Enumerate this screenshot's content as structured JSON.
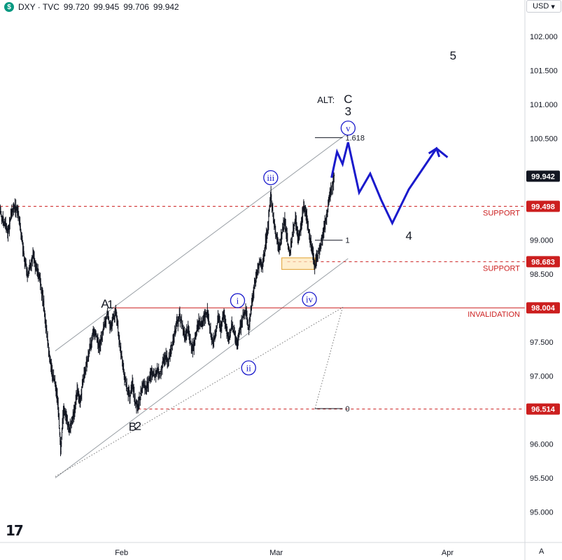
{
  "header": {
    "symbol_badge": "$",
    "symbol": "DXY · TVC",
    "open": "99.720",
    "high": "99.945",
    "low": "99.706",
    "close": "99.942"
  },
  "currency_button": {
    "label": "USD",
    "chevron": "▾"
  },
  "logo_text": "17",
  "auto_label": "A",
  "colors": {
    "candle": "#131722",
    "projection": "#1a1acc",
    "support": "#cc1f1f",
    "channel": "#9aa0a6",
    "axis_text": "#131722",
    "current_price_bg": "#131722",
    "level_bg": "#cc1f1f",
    "box_fill": "#fde7b8",
    "box_stroke": "#e0a030"
  },
  "chart_data": {
    "type": "candlestick",
    "y_axis": {
      "ticks": [
        95.0,
        95.5,
        96.0,
        96.5,
        97.0,
        97.5,
        98.0,
        98.5,
        99.0,
        99.5,
        100.0,
        100.5,
        101.0,
        101.5,
        102.0
      ],
      "tick_labels": [
        "95.000",
        "95.500",
        "96.000",
        "96.500",
        "97.000",
        "97.500",
        "98.000",
        "98.500",
        "99.000",
        "99.500",
        "",
        "100.500",
        "101.000",
        "101.500",
        "102.000"
      ],
      "range": [
        94.55,
        102.35
      ]
    },
    "x_axis": {
      "start": "2025-01-10",
      "end": "2025-04-15",
      "ticks": [
        {
          "date": "2025-02-01",
          "label": "Feb"
        },
        {
          "date": "2025-03-01",
          "label": "Mar"
        },
        {
          "date": "2025-04-01",
          "label": "Apr"
        }
      ]
    },
    "price_path": [
      [
        "2025-01-10 00:00",
        99.45
      ],
      [
        "2025-01-10 12:00",
        99.3
      ],
      [
        "2025-01-11 00:00",
        99.2
      ],
      [
        "2025-01-11 12:00",
        99.1
      ],
      [
        "2025-01-12 00:00",
        99.35
      ],
      [
        "2025-01-12 12:00",
        99.5
      ],
      [
        "2025-01-13 00:00",
        99.45
      ],
      [
        "2025-01-13 12:00",
        99.3
      ],
      [
        "2025-01-14 00:00",
        99.0
      ],
      [
        "2025-01-14 12:00",
        98.7
      ],
      [
        "2025-01-15 00:00",
        98.5
      ],
      [
        "2025-01-15 12:00",
        98.6
      ],
      [
        "2025-01-16 00:00",
        98.8
      ],
      [
        "2025-01-16 12:00",
        98.6
      ],
      [
        "2025-01-17 00:00",
        98.5
      ],
      [
        "2025-01-17 12:00",
        98.3
      ],
      [
        "2025-01-18 00:00",
        98.0
      ],
      [
        "2025-01-18 12:00",
        97.6
      ],
      [
        "2025-01-19 00:00",
        97.3
      ],
      [
        "2025-01-19 12:00",
        97.0
      ],
      [
        "2025-01-20 00:00",
        96.9
      ],
      [
        "2025-01-20 12:00",
        96.6
      ],
      [
        "2025-01-21 00:00",
        95.9
      ],
      [
        "2025-01-21 12:00",
        96.5
      ],
      [
        "2025-01-22 00:00",
        96.4
      ],
      [
        "2025-01-22 12:00",
        96.2
      ],
      [
        "2025-01-23 00:00",
        96.35
      ],
      [
        "2025-01-23 12:00",
        96.5
      ],
      [
        "2025-01-24 00:00",
        96.8
      ],
      [
        "2025-01-24 12:00",
        96.6
      ],
      [
        "2025-01-25 00:00",
        96.9
      ],
      [
        "2025-01-25 12:00",
        97.1
      ],
      [
        "2025-01-26 00:00",
        97.3
      ],
      [
        "2025-01-26 12:00",
        97.5
      ],
      [
        "2025-01-27 00:00",
        97.7
      ],
      [
        "2025-01-27 12:00",
        97.6
      ],
      [
        "2025-01-28 00:00",
        97.4
      ],
      [
        "2025-01-28 12:00",
        97.6
      ],
      [
        "2025-01-29 00:00",
        97.8
      ],
      [
        "2025-01-29 12:00",
        97.9
      ],
      [
        "2025-01-30 00:00",
        97.7
      ],
      [
        "2025-01-30 12:00",
        97.85
      ],
      [
        "2025-01-31 00:00",
        97.95
      ],
      [
        "2025-01-31 12:00",
        97.6
      ],
      [
        "2025-02-01 00:00",
        97.3
      ],
      [
        "2025-02-01 12:00",
        97.0
      ],
      [
        "2025-02-02 00:00",
        96.8
      ],
      [
        "2025-02-02 12:00",
        96.7
      ],
      [
        "2025-02-03 00:00",
        96.9
      ],
      [
        "2025-02-03 12:00",
        96.6
      ],
      [
        "2025-02-04 00:00",
        96.55
      ],
      [
        "2025-02-04 12:00",
        96.75
      ],
      [
        "2025-02-05 00:00",
        96.9
      ],
      [
        "2025-02-05 12:00",
        96.8
      ],
      [
        "2025-02-06 00:00",
        96.95
      ],
      [
        "2025-02-06 12:00",
        97.05
      ],
      [
        "2025-02-07 00:00",
        97.0
      ],
      [
        "2025-02-07 12:00",
        97.1
      ],
      [
        "2025-02-08 00:00",
        97.05
      ],
      [
        "2025-02-08 12:00",
        97.2
      ],
      [
        "2025-02-09 00:00",
        97.3
      ],
      [
        "2025-02-09 12:00",
        97.2
      ],
      [
        "2025-02-10 00:00",
        97.4
      ],
      [
        "2025-02-10 12:00",
        97.6
      ],
      [
        "2025-02-11 00:00",
        97.75
      ],
      [
        "2025-02-11 12:00",
        97.9
      ],
      [
        "2025-02-12 00:00",
        97.75
      ],
      [
        "2025-02-12 12:00",
        97.55
      ],
      [
        "2025-02-13 00:00",
        97.7
      ],
      [
        "2025-02-13 12:00",
        97.5
      ],
      [
        "2025-02-14 00:00",
        97.4
      ],
      [
        "2025-02-14 12:00",
        97.6
      ],
      [
        "2025-02-15 00:00",
        97.8
      ],
      [
        "2025-02-15 12:00",
        97.75
      ],
      [
        "2025-02-16 00:00",
        97.85
      ],
      [
        "2025-02-16 12:00",
        97.95
      ],
      [
        "2025-02-17 00:00",
        97.7
      ],
      [
        "2025-02-17 12:00",
        97.5
      ],
      [
        "2025-02-18 00:00",
        97.6
      ],
      [
        "2025-02-18 12:00",
        97.85
      ],
      [
        "2025-02-19 00:00",
        97.7
      ],
      [
        "2025-02-19 12:00",
        97.9
      ],
      [
        "2025-02-20 00:00",
        97.65
      ],
      [
        "2025-02-20 12:00",
        97.55
      ],
      [
        "2025-02-21 00:00",
        97.75
      ],
      [
        "2025-02-21 12:00",
        97.6
      ],
      [
        "2025-02-22 00:00",
        97.5
      ],
      [
        "2025-02-22 12:00",
        97.7
      ],
      [
        "2025-02-23 00:00",
        97.9
      ],
      [
        "2025-02-23 12:00",
        97.95
      ],
      [
        "2025-02-24 00:00",
        97.7
      ],
      [
        "2025-02-24 12:00",
        98.0
      ],
      [
        "2025-02-25 00:00",
        98.3
      ],
      [
        "2025-02-25 12:00",
        98.5
      ],
      [
        "2025-02-26 00:00",
        98.7
      ],
      [
        "2025-02-26 12:00",
        98.6
      ],
      [
        "2025-02-27 00:00",
        98.9
      ],
      [
        "2025-02-27 12:00",
        99.2
      ],
      [
        "2025-02-28 00:00",
        99.7
      ],
      [
        "2025-02-28 12:00",
        99.3
      ],
      [
        "2025-03-01 00:00",
        99.05
      ],
      [
        "2025-03-01 12:00",
        98.85
      ],
      [
        "2025-03-02 00:00",
        99.1
      ],
      [
        "2025-03-02 12:00",
        99.3
      ],
      [
        "2025-03-03 00:00",
        99.0
      ],
      [
        "2025-03-03 12:00",
        98.8
      ],
      [
        "2025-03-04 00:00",
        99.1
      ],
      [
        "2025-03-04 12:00",
        99.3
      ],
      [
        "2025-03-05 00:00",
        99.0
      ],
      [
        "2025-03-05 12:00",
        99.2
      ],
      [
        "2025-03-06 00:00",
        99.55
      ],
      [
        "2025-03-06 12:00",
        99.35
      ],
      [
        "2025-03-07 00:00",
        99.1
      ],
      [
        "2025-03-07 12:00",
        98.85
      ],
      [
        "2025-03-08 00:00",
        98.6
      ],
      [
        "2025-03-08 12:00",
        98.8
      ],
      [
        "2025-03-09 00:00",
        98.9
      ],
      [
        "2025-03-09 12:00",
        99.1
      ],
      [
        "2025-03-10 00:00",
        99.3
      ],
      [
        "2025-03-10 12:00",
        99.55
      ],
      [
        "2025-03-11 00:00",
        99.75
      ],
      [
        "2025-03-11 12:00",
        99.94
      ]
    ],
    "wave_labels": [
      {
        "text": "A",
        "date": "2025-01-29",
        "price": 98.07,
        "color": "black",
        "circled": false
      },
      {
        "text": "1",
        "date": "2025-01-30",
        "price": 98.06,
        "color": "black",
        "circled": false
      },
      {
        "text": "B",
        "date": "2025-02-03",
        "price": 96.26,
        "color": "black",
        "circled": false
      },
      {
        "text": "2",
        "date": "2025-02-04",
        "price": 96.27,
        "color": "black",
        "circled": false
      },
      {
        "text": "i",
        "date": "2025-02-22",
        "price": 98.11,
        "color": "blue",
        "circled": true
      },
      {
        "text": "ii",
        "date": "2025-02-24",
        "price": 97.12,
        "color": "blue",
        "circled": true
      },
      {
        "text": "iii",
        "date": "2025-02-28",
        "price": 99.92,
        "color": "blue",
        "circled": true
      },
      {
        "text": "iv",
        "date": "2025-03-07",
        "price": 98.13,
        "color": "blue",
        "circled": true
      },
      {
        "text": "v",
        "date": "2025-03-14",
        "price": 100.65,
        "color": "blue",
        "circled": true
      },
      {
        "text": "3",
        "date": "2025-03-14",
        "price": 100.9,
        "color": "black",
        "circled": false
      },
      {
        "text": "ALT:",
        "date": "2025-03-10",
        "price": 101.08,
        "color": "black",
        "circled": false
      },
      {
        "text": "C",
        "date": "2025-03-14",
        "price": 101.08,
        "color": "black",
        "circled": false
      },
      {
        "text": "4",
        "date": "2025-03-25",
        "price": 99.07,
        "color": "black",
        "circled": false
      },
      {
        "text": "5",
        "date": "2025-04-02",
        "price": 101.72,
        "color": "black",
        "circled": false
      }
    ],
    "levels": [
      {
        "price": 99.498,
        "label": "99.498",
        "text": "SUPPORT",
        "style": "dashed",
        "from": "2025-01-10"
      },
      {
        "price": 98.683,
        "label": "98.683",
        "text": "SUPPORT",
        "style": "dashed",
        "from": "2025-03-03"
      },
      {
        "price": 98.004,
        "label": "98.004",
        "text": "INVALIDATION",
        "style": "solid",
        "from": "2025-01-30"
      },
      {
        "price": 96.514,
        "label": "96.514",
        "text": "",
        "style": "dashed",
        "from": "2025-02-04"
      }
    ],
    "current_price": {
      "price": 99.942,
      "label": "99.942"
    },
    "channel": {
      "upper": [
        [
          "2025-01-20",
          97.37
        ],
        [
          "2025-03-14",
          100.58
        ]
      ],
      "lower": [
        [
          "2025-01-20",
          95.5
        ],
        [
          "2025-03-14",
          98.73
        ]
      ]
    },
    "projection": [
      [
        "2025-03-11",
        99.92
      ],
      [
        "2025-03-12",
        100.3
      ],
      [
        "2025-03-13",
        100.12
      ],
      [
        "2025-03-14",
        100.44
      ],
      [
        "2025-03-16",
        99.7
      ],
      [
        "2025-03-18",
        99.98
      ],
      [
        "2025-03-20",
        99.59
      ],
      [
        "2025-03-22",
        99.25
      ],
      [
        "2025-03-25",
        99.75
      ],
      [
        "2025-03-30",
        100.35
      ],
      [
        "2025-04-01",
        100.22
      ]
    ],
    "fibonacci": {
      "levels": [
        {
          "ratio": "1.618",
          "price": 100.51
        },
        {
          "ratio": "1",
          "price": 99.0
        },
        {
          "ratio": "0",
          "price": 96.52
        }
      ],
      "from_date": "2025-03-08",
      "to_date": "2025-03-13"
    },
    "fib_trend_line": [
      [
        "2025-01-20",
        95.52
      ],
      [
        "2025-03-13",
        98.01
      ],
      [
        "2025-03-08",
        96.52
      ]
    ],
    "support_box": {
      "date_from": "2025-03-02",
      "date_to": "2025-03-08",
      "price_low": 98.57,
      "price_high": 98.74
    }
  }
}
